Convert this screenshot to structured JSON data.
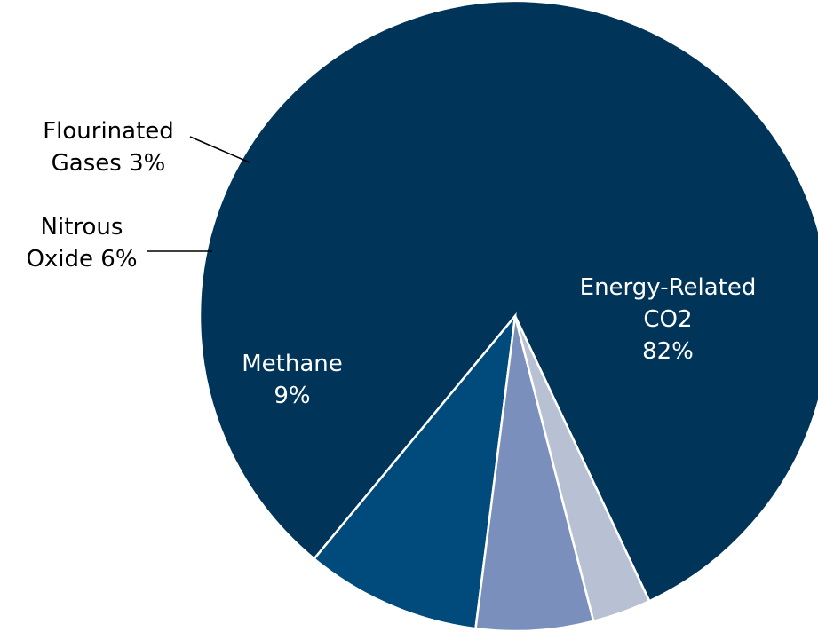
{
  "chart_data": {
    "type": "pie",
    "start_angle_deg": 295.2,
    "direction": "counterclockwise",
    "slices": [
      {
        "label_lines": [
          "Energy-Related",
          "CO2",
          "82%"
        ],
        "value": 82,
        "color": "#003459",
        "label_color": "#ffffff"
      },
      {
        "label_lines": [
          "Methane",
          "9%"
        ],
        "value": 9,
        "color": "#004a7c",
        "label_color": "#ffffff"
      },
      {
        "label_lines": [
          "Nitrous",
          "Oxide 6%"
        ],
        "value": 6,
        "color": "#7a8fbb",
        "label_color": "#000000"
      },
      {
        "label_lines": [
          "Flourinated",
          "Gases 3%"
        ],
        "value": 3,
        "color": "#b8c1d3",
        "label_color": "#000000"
      }
    ]
  }
}
